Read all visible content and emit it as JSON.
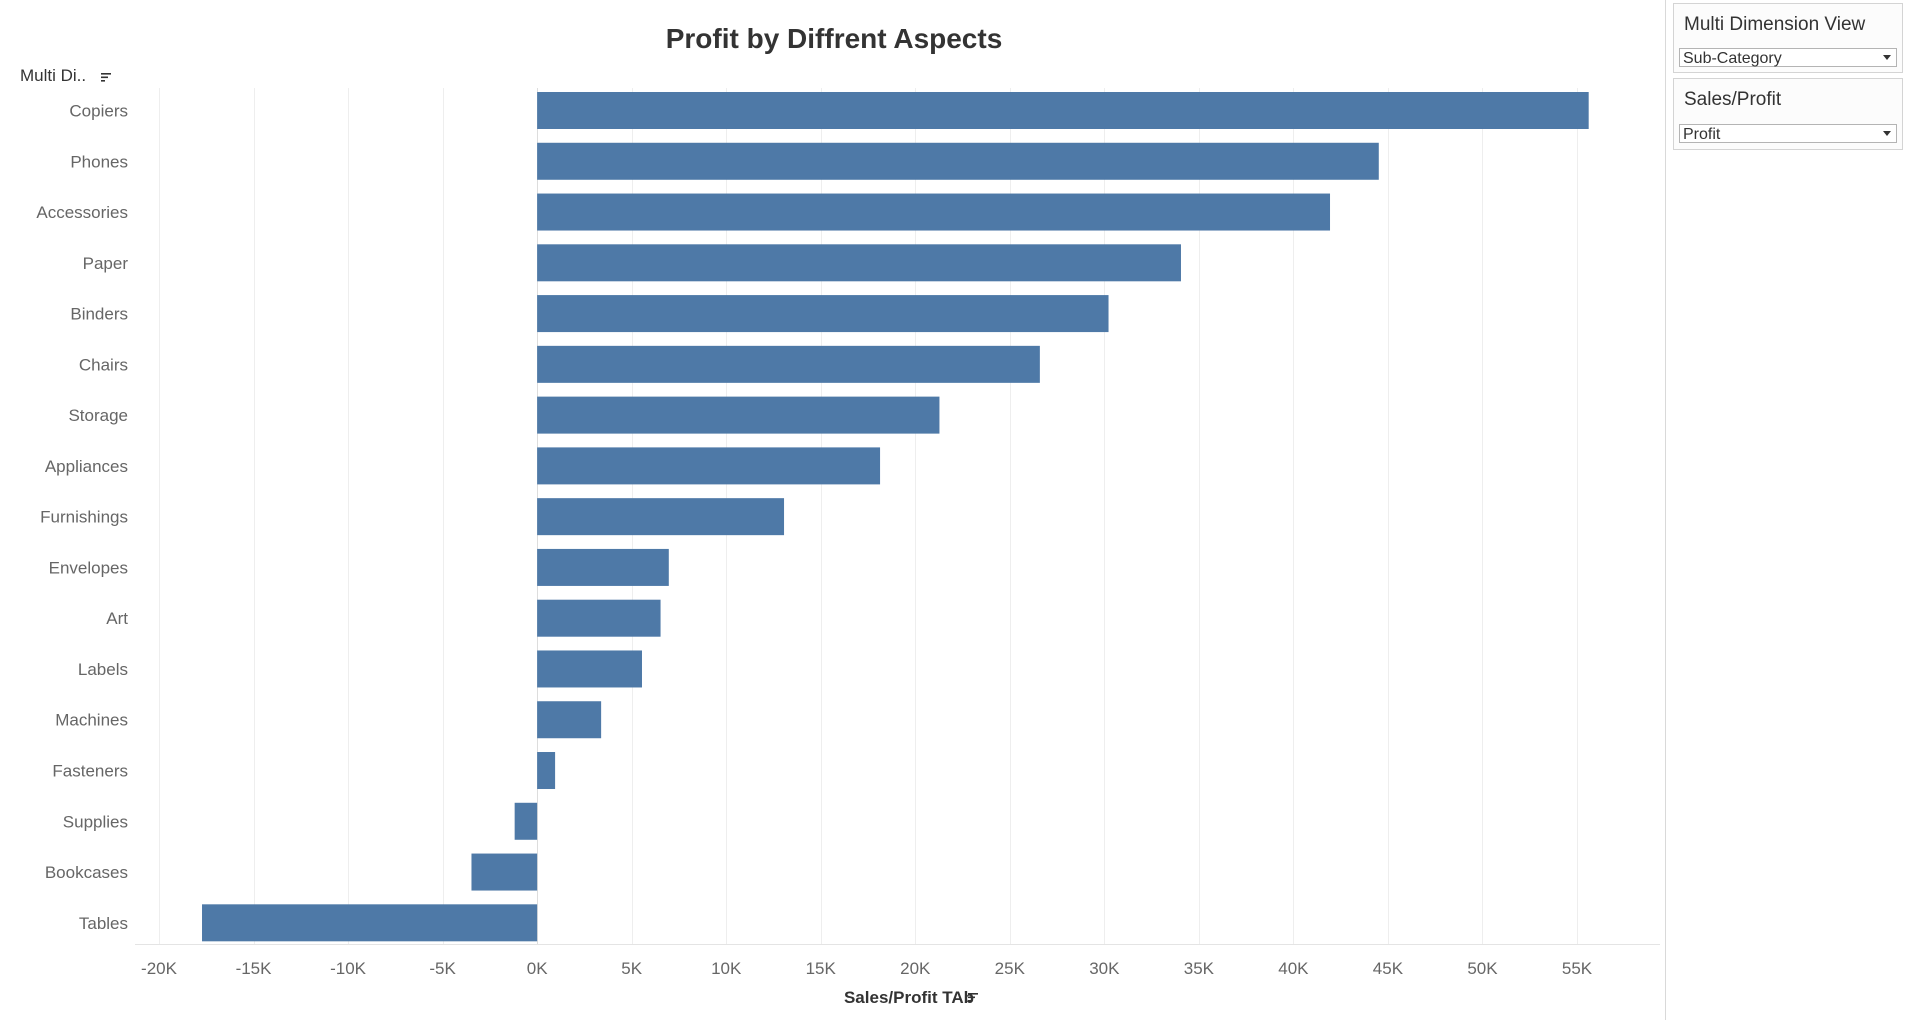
{
  "chart_data": {
    "type": "bar",
    "orientation": "horizontal",
    "title": "Profit  by  Diffrent Aspects",
    "row_header": "Multi Di..",
    "xlabel": "Sales/Profit TAb",
    "ylabel": "",
    "categories": [
      "Copiers",
      "Phones",
      "Accessories",
      "Paper",
      "Binders",
      "Chairs",
      "Storage",
      "Appliances",
      "Furnishings",
      "Envelopes",
      "Art",
      "Labels",
      "Machines",
      "Fasteners",
      "Supplies",
      "Bookcases",
      "Tables"
    ],
    "values": [
      55618,
      44516,
      41937,
      34054,
      30222,
      26590,
      21279,
      18138,
      13059,
      6964,
      6528,
      5546,
      3385,
      950,
      -1189,
      -3473,
      -17725
    ],
    "xlim": [
      -20000,
      55000
    ],
    "ticks": [
      -20000,
      -15000,
      -10000,
      -5000,
      0,
      5000,
      10000,
      15000,
      20000,
      25000,
      30000,
      35000,
      40000,
      45000,
      50000,
      55000
    ],
    "tick_labels": [
      "-20K",
      "-15K",
      "-10K",
      "-5K",
      "0K",
      "5K",
      "10K",
      "15K",
      "20K",
      "25K",
      "30K",
      "35K",
      "40K",
      "45K",
      "50K",
      "55K"
    ],
    "bar_color": "#4e79a7",
    "grid": true,
    "legend": "none"
  },
  "parameters": [
    {
      "title": "Multi Dimension View",
      "value": "Sub-Category"
    },
    {
      "title": "Sales/Profit",
      "value": "Profit"
    }
  ],
  "colors": {
    "bar": "#4e79a7",
    "gridline": "#eeeeee",
    "zero_line": "#dddddd"
  },
  "icons": {
    "sort": "sort-icon",
    "dropdown": "chevron-down-icon"
  }
}
